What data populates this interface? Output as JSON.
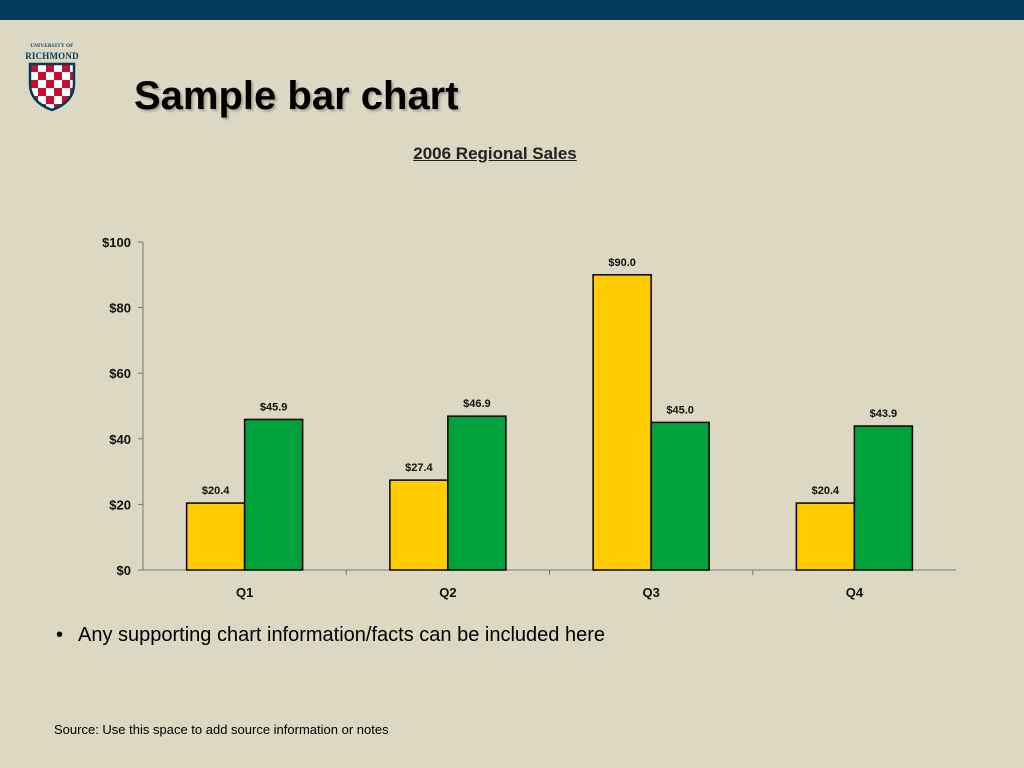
{
  "slide": {
    "title": "Sample bar chart",
    "logo": {
      "line1": "UNIVERSITY OF",
      "line2": "RICHMOND"
    },
    "bullet": "Any supporting chart information/facts can be included here",
    "source": "Source: Use this space to add source information or notes"
  },
  "colors": {
    "header_bar": "#003a5d",
    "background": "#dcd8c2",
    "series1": "#ffcc00",
    "series2": "#00a33b"
  },
  "chart_data": {
    "type": "bar",
    "title": "2006 Regional Sales",
    "xlabel": "",
    "ylabel": "",
    "ylim": [
      0,
      100
    ],
    "yticks": [
      0,
      20,
      40,
      60,
      80,
      100
    ],
    "ytick_labels": [
      "$0",
      "$20",
      "$40",
      "$60",
      "$80",
      "$100"
    ],
    "grid": false,
    "legend": "none",
    "categories": [
      "Q1",
      "Q2",
      "Q3",
      "Q4"
    ],
    "series": [
      {
        "values": [
          20.4,
          27.4,
          90.0,
          20.4
        ],
        "labels": [
          "$20.4",
          "$27.4",
          "$90.0",
          "$20.4"
        ],
        "color": "#ffcc00"
      },
      {
        "values": [
          45.9,
          46.9,
          45.0,
          43.9
        ],
        "labels": [
          "$45.9",
          "$46.9",
          "$45.0",
          "$43.9"
        ],
        "color": "#00a33b"
      }
    ]
  }
}
